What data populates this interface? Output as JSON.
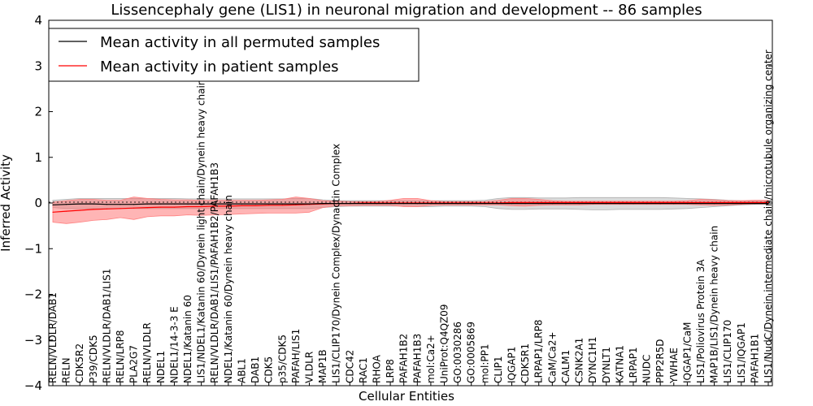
{
  "chart_data": {
    "type": "line",
    "title": "Lissencephaly gene (LIS1) in neuronal migration and development -- 86 samples",
    "xlabel": "Cellular Entities",
    "ylabel": "Inferred Activity",
    "ylim": [
      -4,
      4
    ],
    "yticks": [
      -4,
      -3,
      -2,
      -1,
      0,
      1,
      2,
      3,
      4
    ],
    "legend_position": "top-left",
    "categories": [
      "RELN/VLDLR/DAB1",
      "RELN",
      "CDK5R2",
      "P39/CDK5",
      "RELN/VLDLR/DAB1/LIS1",
      "RELN/LRP8",
      "PLA2G7",
      "RELN/VLDLR",
      "NDEL1",
      "NDEL1/14-3-3 E",
      "NDEL1/Katanin 60",
      "LIS1/NDEL1/Katanin 60/Dynein light chain/Dynein heavy chain",
      "RELN/VLDLR/DAB1/LIS1/PAFAH1B2/PAFAH1B3",
      "NDEL1/Katanin 60/Dynein heavy chain",
      "ABL1",
      "DAB1",
      "CDK5",
      "p35/CDK5",
      "PAFAH/LIS1",
      "VLDLR",
      "MAP1B",
      "LIS1/CLIP170/Dynein Complex/Dynactin Complex",
      "CDC42",
      "RAC1",
      "RHOA",
      "LRP8",
      "PAFAH1B2",
      "PAFAH1B3",
      "mol:Ca2+",
      "UniProt:Q4QZ09",
      "GO:0030286",
      "GO:0005869",
      "mol:PP1",
      "CLIP1",
      "IQGAP1",
      "CDK5R1",
      "LRPAP1/LRP8",
      "CaM/Ca2+",
      "CALM1",
      "CSNK2A1",
      "DYNC1H1",
      "DYNLT1",
      "KATNA1",
      "LRPAP1",
      "NUDC",
      "PPP2R5D",
      "YWHAE",
      "IQGAP1/CaM",
      "LIS1/Poliovirus Protein 3A",
      "MAP1B/LIS1/Dynein heavy chain",
      "LIS1/CLIP170",
      "LIS1/IQGAP1",
      "PAFAH1B1",
      "LIS1/NudC/Dynein intermediate chain/microtubule organizing center"
    ],
    "series": [
      {
        "name": "Mean activity in all permuted samples",
        "color": "#000000",
        "values": [
          -0.04,
          -0.03,
          -0.02,
          -0.02,
          -0.03,
          -0.03,
          -0.03,
          -0.02,
          -0.02,
          -0.02,
          -0.02,
          -0.02,
          -0.02,
          -0.02,
          -0.02,
          -0.02,
          -0.02,
          -0.02,
          -0.02,
          -0.02,
          -0.01,
          -0.01,
          -0.01,
          -0.01,
          -0.01,
          -0.01,
          -0.01,
          -0.01,
          -0.01,
          -0.01,
          -0.01,
          -0.01,
          -0.01,
          -0.01,
          -0.01,
          -0.01,
          -0.01,
          -0.01,
          -0.01,
          -0.01,
          -0.01,
          -0.01,
          -0.01,
          -0.01,
          -0.01,
          -0.01,
          -0.01,
          -0.01,
          -0.01,
          -0.01,
          -0.01,
          -0.01,
          -0.01,
          -0.01
        ],
        "band_low": [
          -0.1,
          -0.12,
          -0.12,
          -0.12,
          -0.12,
          -0.12,
          -0.12,
          -0.12,
          -0.12,
          -0.12,
          -0.12,
          -0.12,
          -0.12,
          -0.12,
          -0.12,
          -0.12,
          -0.12,
          -0.12,
          -0.12,
          -0.12,
          -0.1,
          -0.08,
          -0.07,
          -0.07,
          -0.07,
          -0.07,
          -0.07,
          -0.08,
          -0.08,
          -0.07,
          -0.07,
          -0.07,
          -0.08,
          -0.12,
          -0.14,
          -0.14,
          -0.13,
          -0.13,
          -0.13,
          -0.14,
          -0.15,
          -0.15,
          -0.14,
          -0.14,
          -0.14,
          -0.14,
          -0.13,
          -0.12,
          -0.1,
          -0.08,
          -0.06,
          -0.04,
          -0.03,
          -0.03
        ],
        "band_high": [
          0.06,
          0.08,
          0.1,
          0.1,
          0.1,
          0.1,
          0.1,
          0.1,
          0.1,
          0.1,
          0.09,
          0.09,
          0.09,
          0.09,
          0.09,
          0.09,
          0.09,
          0.09,
          0.1,
          0.1,
          0.07,
          0.05,
          0.05,
          0.05,
          0.05,
          0.05,
          0.05,
          0.05,
          0.05,
          0.05,
          0.05,
          0.05,
          0.06,
          0.1,
          0.12,
          0.12,
          0.11,
          0.11,
          0.11,
          0.12,
          0.12,
          0.12,
          0.12,
          0.12,
          0.12,
          0.12,
          0.11,
          0.1,
          0.09,
          0.08,
          0.06,
          0.05,
          0.04,
          0.04
        ]
      },
      {
        "name": "Mean activity in patient samples",
        "color": "#ff0000",
        "values": [
          -0.2,
          -0.18,
          -0.16,
          -0.14,
          -0.13,
          -0.12,
          -0.11,
          -0.1,
          -0.09,
          -0.09,
          -0.08,
          -0.08,
          -0.07,
          -0.07,
          -0.06,
          -0.06,
          -0.05,
          -0.05,
          -0.04,
          -0.03,
          -0.02,
          -0.01,
          -0.01,
          0.0,
          0.0,
          0.0,
          0.0,
          0.0,
          0.0,
          0.0,
          0.0,
          0.0,
          0.0,
          0.0,
          0.01,
          0.01,
          0.01,
          0.01,
          0.01,
          0.01,
          0.01,
          0.01,
          0.01,
          0.01,
          0.01,
          0.01,
          0.01,
          0.01,
          0.01,
          0.01,
          0.01,
          0.01,
          0.01,
          0.01
        ],
        "band_low": [
          -0.42,
          -0.45,
          -0.42,
          -0.38,
          -0.36,
          -0.32,
          -0.36,
          -0.3,
          -0.28,
          -0.28,
          -0.26,
          -0.27,
          -0.26,
          -0.25,
          -0.24,
          -0.23,
          -0.22,
          -0.22,
          -0.22,
          -0.2,
          -0.1,
          -0.06,
          -0.06,
          -0.05,
          -0.05,
          -0.05,
          -0.08,
          -0.08,
          -0.05,
          -0.04,
          -0.04,
          -0.04,
          -0.04,
          -0.04,
          -0.06,
          -0.07,
          -0.05,
          -0.04,
          -0.04,
          -0.04,
          -0.03,
          -0.03,
          -0.03,
          -0.03,
          -0.03,
          -0.03,
          -0.03,
          -0.03,
          -0.04,
          -0.05,
          -0.04,
          -0.03,
          -0.02,
          -0.02
        ],
        "band_high": [
          0.02,
          0.05,
          0.08,
          0.08,
          0.06,
          0.06,
          0.13,
          0.1,
          0.08,
          0.07,
          0.07,
          0.06,
          0.06,
          0.06,
          0.06,
          0.06,
          0.07,
          0.08,
          0.13,
          0.1,
          0.05,
          0.04,
          0.03,
          0.03,
          0.03,
          0.06,
          0.1,
          0.1,
          0.05,
          0.03,
          0.03,
          0.03,
          0.03,
          0.06,
          0.1,
          0.1,
          0.08,
          0.05,
          0.04,
          0.04,
          0.04,
          0.04,
          0.04,
          0.04,
          0.04,
          0.04,
          0.04,
          0.05,
          0.08,
          0.07,
          0.05,
          0.05,
          0.06,
          0.06
        ]
      }
    ]
  }
}
